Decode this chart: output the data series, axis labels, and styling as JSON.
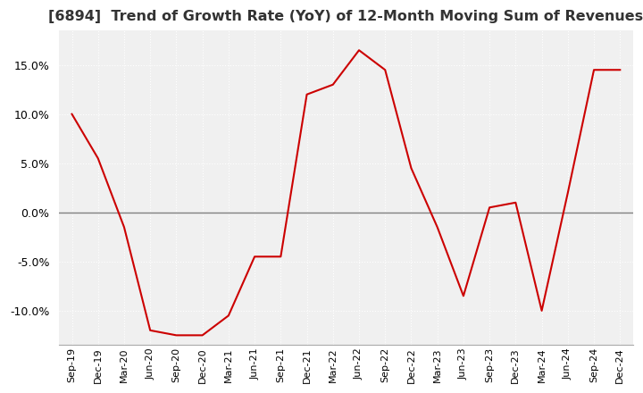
{
  "title": "[6894]  Trend of Growth Rate (YoY) of 12-Month Moving Sum of Revenues",
  "title_fontsize": 11.5,
  "line_color": "#cc0000",
  "background_color": "#ffffff",
  "plot_bg_color": "#f0f0f0",
  "grid_color": "#ffffff",
  "zero_line_color": "#808080",
  "ylim": [
    -13.5,
    18.5
  ],
  "yticks": [
    -10,
    -5,
    0,
    5,
    10,
    15
  ],
  "x_labels": [
    "Sep-19",
    "Dec-19",
    "Mar-20",
    "Jun-20",
    "Sep-20",
    "Dec-20",
    "Mar-21",
    "Jun-21",
    "Sep-21",
    "Dec-21",
    "Mar-22",
    "Jun-22",
    "Sep-22",
    "Dec-22",
    "Mar-23",
    "Jun-23",
    "Sep-23",
    "Dec-23",
    "Mar-24",
    "Jun-24",
    "Sep-24",
    "Dec-24"
  ],
  "values": [
    10.0,
    5.5,
    -1.5,
    -12.0,
    -12.5,
    -12.5,
    -10.5,
    -4.5,
    -4.5,
    12.0,
    13.0,
    16.5,
    14.5,
    4.5,
    -1.5,
    -8.5,
    0.5,
    1.0,
    -10.0,
    2.0,
    14.5,
    14.5
  ]
}
